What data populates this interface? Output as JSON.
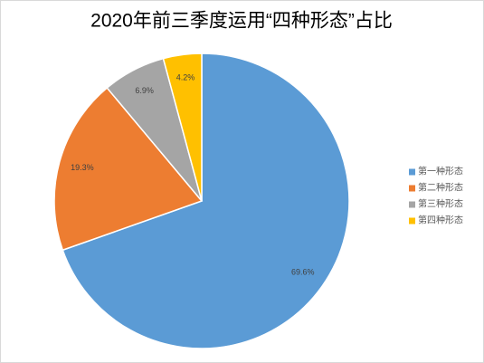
{
  "chart_data": {
    "type": "pie",
    "title": "2020年前三季度运用“四种形态”占比",
    "categories": [
      "第一种形态",
      "第二种形态",
      "第三种形态",
      "第四种形态"
    ],
    "values": [
      69.6,
      19.3,
      6.9,
      4.2
    ],
    "value_labels": [
      "69.6%",
      "19.3%",
      "6.9%",
      "4.2%"
    ],
    "colors": [
      "#5b9bd5",
      "#ed7d31",
      "#a5a5a5",
      "#ffc000"
    ],
    "legend": "right"
  }
}
